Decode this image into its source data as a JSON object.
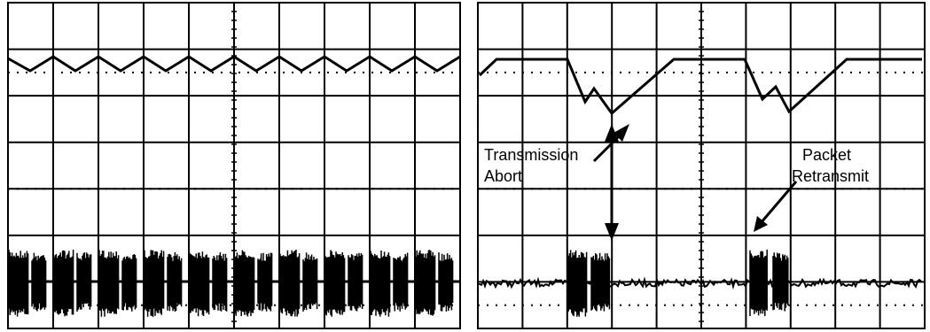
{
  "annotations": [
    {
      "lines": [
        "Transmission",
        "Abort"
      ]
    },
    {
      "lines": [
        "Packet",
        "Retransmit"
      ]
    }
  ]
}
